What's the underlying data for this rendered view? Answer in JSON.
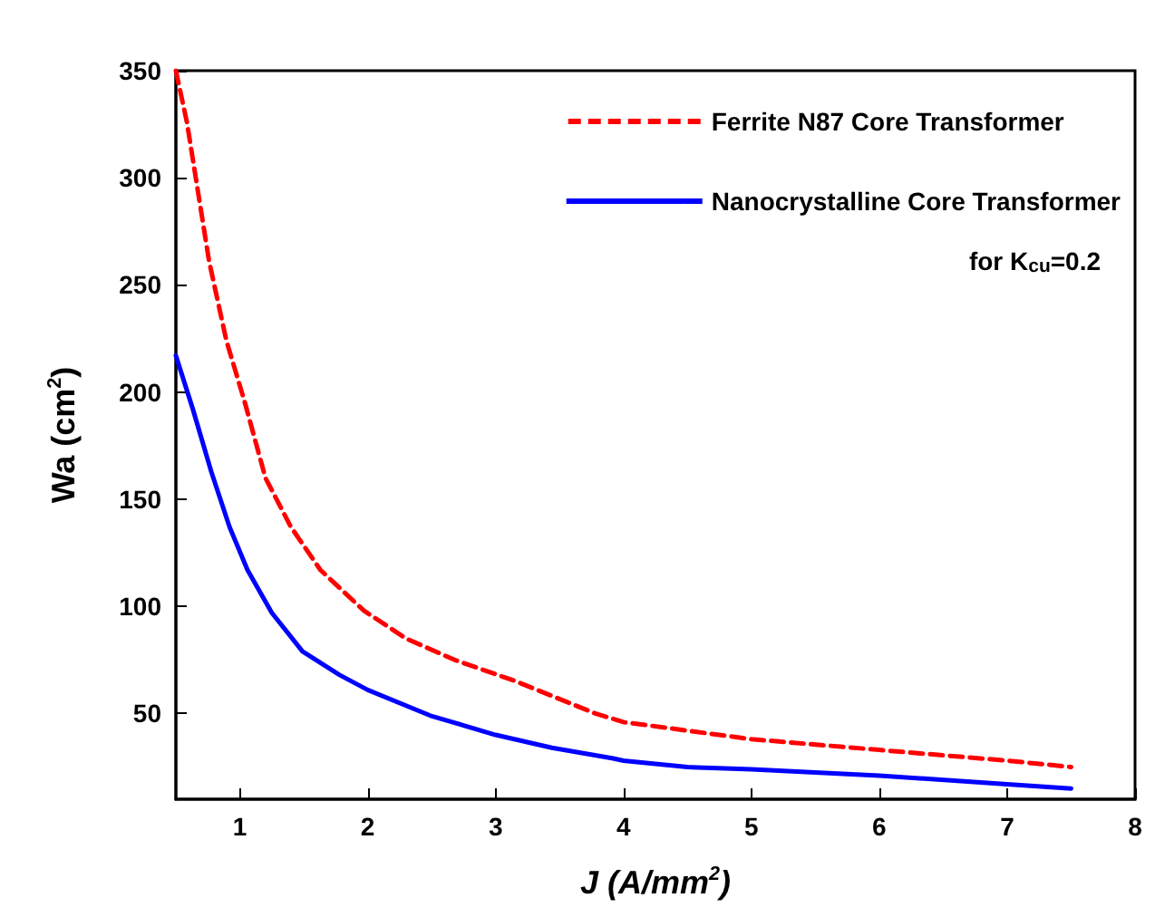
{
  "chart_data": {
    "type": "line",
    "xlabel": "J (A/mm$^{2}$)",
    "ylabel": "Wa (cm$^{2}$)",
    "annotations": [
      "for K$_{cu}$=0.2"
    ],
    "xlim": [
      0.5,
      8
    ],
    "xticks": [
      1,
      2,
      3,
      4,
      5,
      6,
      7,
      8
    ],
    "ylim": [
      10,
      350
    ],
    "yticks": [
      50,
      100,
      150,
      200,
      250,
      300,
      350
    ],
    "grid": false,
    "legend": "top right",
    "marker": "none",
    "series": [
      {
        "name": "Ferrite N87 Core Transformer",
        "color": "#ff0000",
        "line_style": "dashed",
        "x": [
          0.5,
          0.586,
          0.76,
          0.895,
          1.04,
          1.2,
          1.4,
          1.63,
          1.97,
          2.3,
          2.68,
          3.16,
          3.78,
          4,
          5,
          6,
          7,
          7.5
        ],
        "values": [
          350,
          326,
          261,
          224,
          195,
          160,
          137,
          117,
          98,
          85,
          75,
          65,
          50,
          46,
          38,
          33,
          28,
          25
        ]
      },
      {
        "name": "Nanocrystalline Core Transformer",
        "color": "#0000ff",
        "line_style": "solid",
        "x": [
          0.5,
          0.633,
          0.776,
          0.92,
          1.06,
          1.25,
          1.49,
          1.78,
          2,
          2.49,
          3,
          3.44,
          3.92,
          4,
          4.5,
          5,
          6,
          7,
          7.5
        ],
        "values": [
          217,
          192,
          163,
          137,
          117,
          97,
          79,
          68,
          61,
          49,
          40,
          34,
          29,
          28,
          25,
          24,
          21,
          17,
          15
        ]
      }
    ]
  }
}
